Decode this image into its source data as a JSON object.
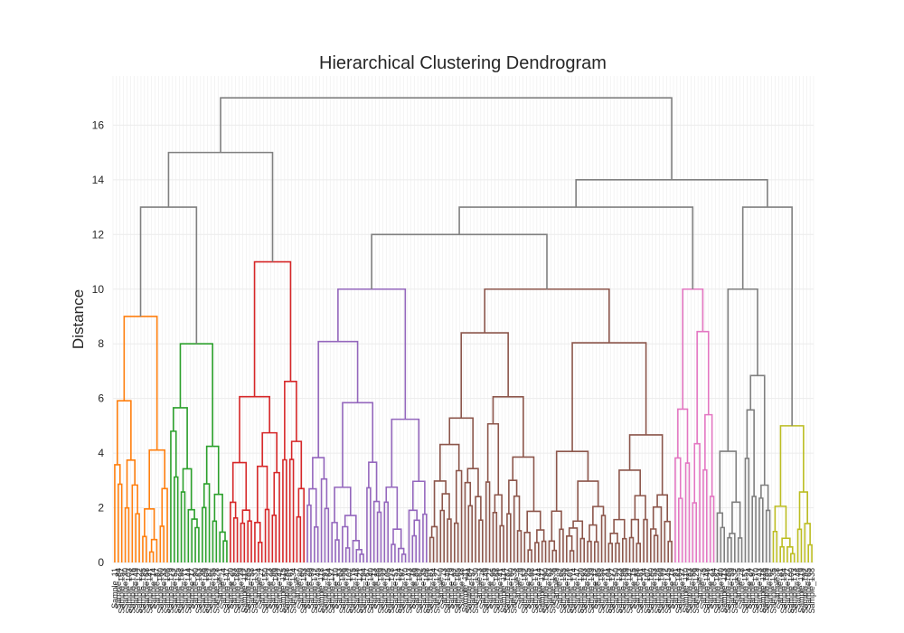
{
  "chart_data": {
    "type": "dendrogram",
    "title": "Hierarchical Clustering Dendrogram",
    "xlabel": "",
    "ylabel": "Distance",
    "ylim": [
      0,
      17.8
    ],
    "yticks": [
      0,
      2,
      4,
      6,
      8,
      10,
      12,
      14,
      16
    ],
    "grid": true,
    "leaf_label_prefix": "Sample",
    "leaf_count": 200,
    "link_color_above_threshold": "#808080",
    "clusters": [
      {
        "color": "#ff7f0e",
        "leaves": 16,
        "height": 9
      },
      {
        "color": "#2ca02c",
        "leaves": 17,
        "height": 8
      },
      {
        "color": "#d62728",
        "leaves": 22,
        "height": 11
      },
      {
        "color": "#9467bd",
        "leaves": 35,
        "height": 10
      },
      {
        "color": "#8c564b",
        "leaves": 70,
        "height": 10
      },
      {
        "color": "#e377c2",
        "leaves": 12,
        "height": 10
      },
      {
        "color": "#7f7f7f",
        "leaves": 16,
        "height": 10
      },
      {
        "color": "#bcbd22",
        "leaves": 12,
        "height": 5
      }
    ],
    "upper_links": [
      {
        "height": 13,
        "joins": [
          "C1",
          "C2"
        ]
      },
      {
        "height": 15,
        "joins": [
          "C1+C2",
          "C3"
        ]
      },
      {
        "height": 12,
        "joins": [
          "C4",
          "C5"
        ]
      },
      {
        "height": 13,
        "joins": [
          "C4+C5",
          "C6"
        ]
      },
      {
        "height": 13,
        "joins": [
          "C7",
          "C8"
        ]
      },
      {
        "height": 14,
        "joins": [
          "C4+C5+C6",
          "C7+C8"
        ]
      },
      {
        "height": 17,
        "joins": [
          "C1+C2+C3",
          "C4..C8"
        ]
      }
    ]
  }
}
